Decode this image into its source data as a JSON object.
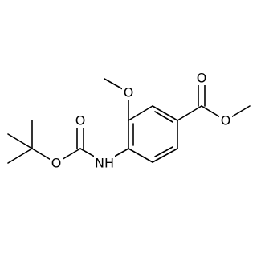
{
  "atoms": [
    {
      "label": "O"
    },
    {
      "label": "O"
    },
    {
      "label": "O"
    },
    {
      "label": "O"
    },
    {
      "label": "O"
    },
    {
      "label": "NH"
    }
  ]
}
